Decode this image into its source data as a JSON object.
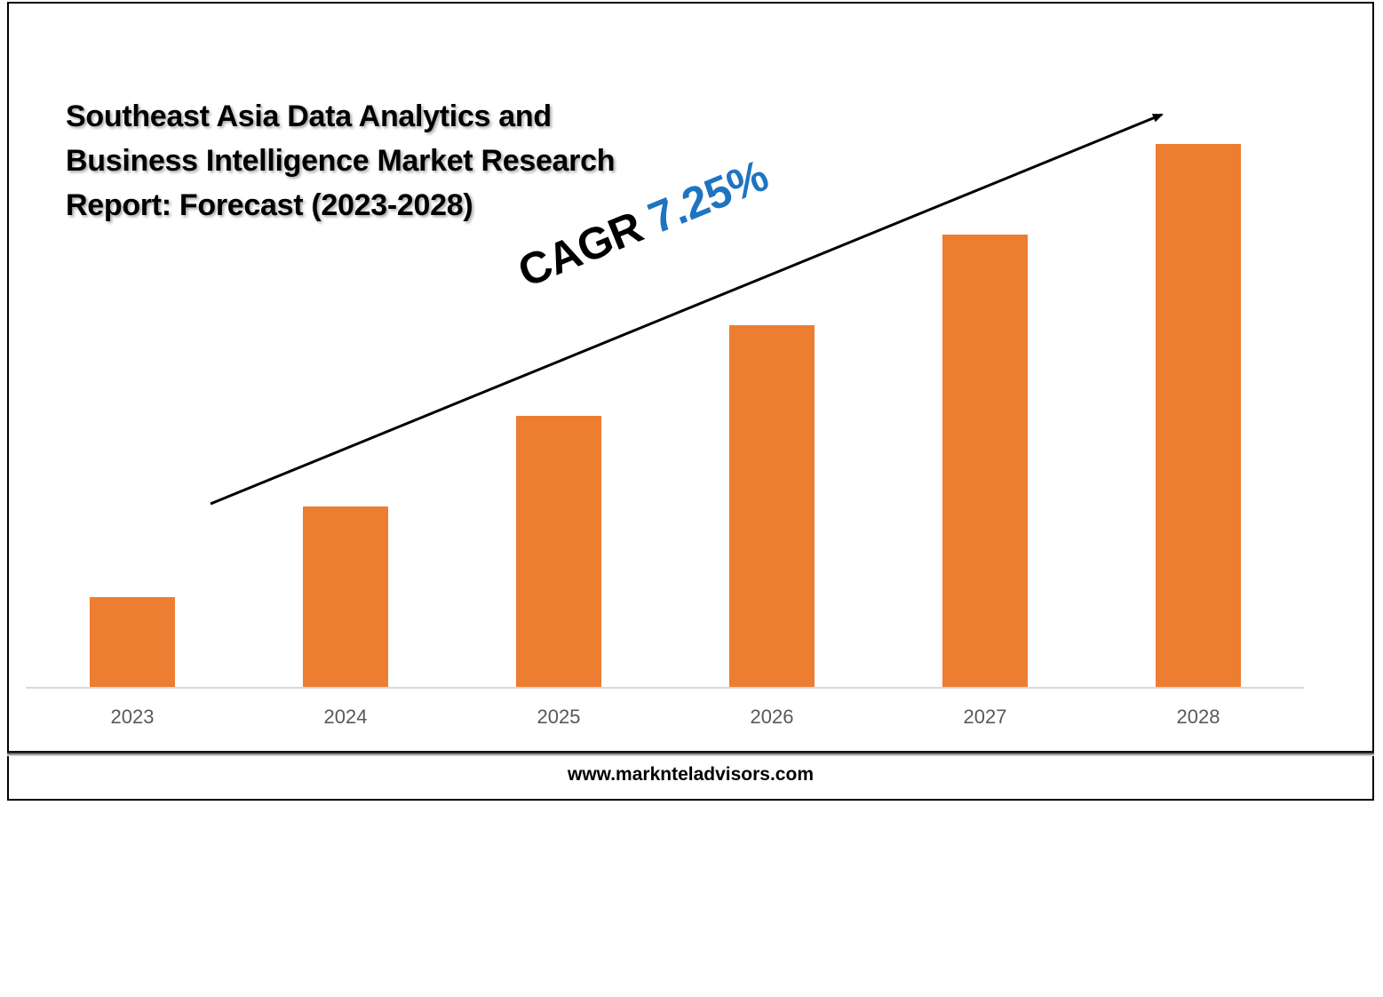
{
  "chart_data": {
    "type": "bar",
    "title": "Southeast Asia Data Analytics and Business Intelligence Market Research Report: Forecast (2023-2028)",
    "categories": [
      "2023",
      "2024",
      "2025",
      "2026",
      "2027",
      "2028"
    ],
    "values": [
      1,
      2,
      3,
      4,
      5,
      6
    ],
    "ylim": [
      0,
      6
    ],
    "xlabel": "",
    "ylabel": "",
    "grid": false,
    "bar_color": "#ed7d31",
    "annotation": {
      "prefix": "CAGR",
      "value": "7.25%",
      "value_color": "#1f74c0"
    }
  },
  "footer": {
    "url": "www.marknteladvisors.com"
  }
}
